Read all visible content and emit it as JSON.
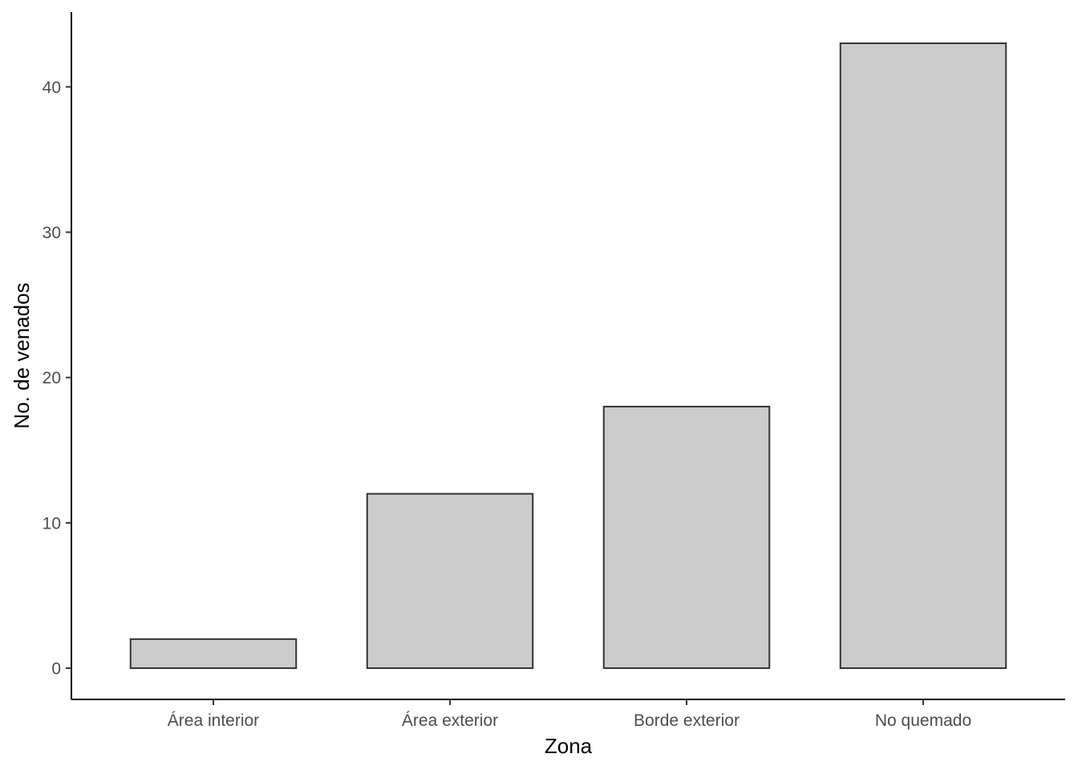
{
  "chart_data": {
    "type": "bar",
    "categories": [
      "Área interior",
      "Área exterior",
      "Borde exterior",
      "No quemado"
    ],
    "values": [
      2,
      12,
      18,
      43
    ],
    "xlabel": "Zona",
    "ylabel": "No. de venados",
    "ylim": [
      -2.15,
      45.15
    ],
    "yticks": [
      0,
      10,
      20,
      30,
      40
    ],
    "grid": false,
    "legend": "none",
    "colors": {
      "bar_fill": "#cccccc",
      "bar_stroke": "#333333",
      "axis": "#000000",
      "tick_text": "#4d4d4d"
    }
  }
}
